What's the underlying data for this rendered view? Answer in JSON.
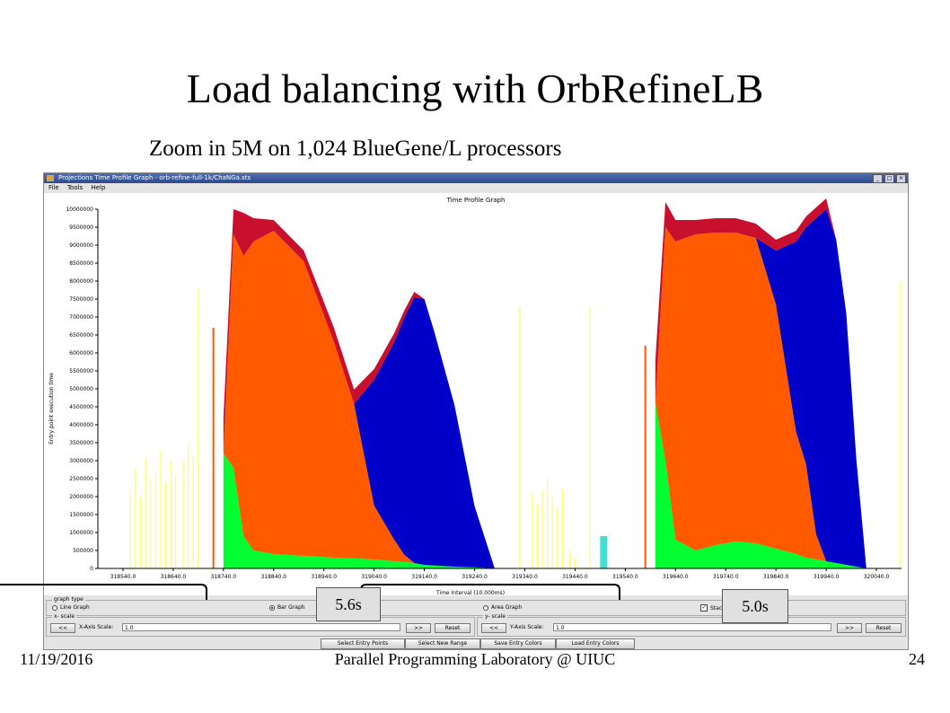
{
  "slide": {
    "title": "Load balancing with OrbRefineLB",
    "subtitle": "Zoom in 5M on 1,024 BlueGene/L processors",
    "footer_date": "11/19/2016",
    "footer_center": "Parallel Programming Laboratory @ UIUC",
    "footer_page": "24"
  },
  "window": {
    "title": "Projections Time Profile Graph - orb-refine-full-1k/ChaNGa.sts",
    "menu": [
      "File",
      "Tools",
      "Help"
    ],
    "buttons": [
      "_",
      "□",
      "×"
    ]
  },
  "chart_data": {
    "type": "area",
    "title": "Time Profile Graph",
    "xlabel": "Time Interval (10.000ms)",
    "ylabel": "Entry point execution time",
    "ylim": [
      0,
      10000000
    ],
    "y_ticks": [
      "0",
      "500000",
      "1000000",
      "1500000",
      "2000000",
      "2500000",
      "3000000",
      "3500000",
      "4000000",
      "4500000",
      "5000000",
      "5500000",
      "6000000",
      "6500000",
      "7000000",
      "7500000",
      "8000000",
      "8500000",
      "9000000",
      "9500000",
      "10000000"
    ],
    "x_ticks": [
      "318540.0",
      "318640.0",
      "318740.0",
      "318840.0",
      "318940.0",
      "319040.0",
      "319140.0",
      "319240.0",
      "319340.0",
      "319440.0",
      "319540.0",
      "319640.0",
      "319740.0",
      "319840.0",
      "319940.0",
      "320040.0"
    ],
    "colors": {
      "red": "#c8102e",
      "orange": "#ff5a00",
      "blue": "#0000c8",
      "green": "#00ff30",
      "yellow": "#ffff60",
      "cyan": "#40e0d0"
    },
    "blocks": [
      {
        "x": [
          318740,
          318760,
          318780,
          318800,
          318840,
          318900,
          318960,
          319000,
          319040,
          319080,
          319100,
          319120,
          319140,
          319160,
          319200,
          319240,
          319280
        ],
        "green": [
          3200000,
          2800000,
          900000,
          500000,
          400000,
          350000,
          300000,
          280000,
          250000,
          200000,
          180000,
          150000,
          100000,
          80000,
          50000,
          30000,
          0
        ],
        "orange": [
          0,
          6500000,
          7800000,
          8600000,
          9000000,
          8200000,
          6000000,
          4300000,
          1500000,
          600000,
          200000,
          0,
          0,
          0,
          0,
          0,
          0
        ],
        "blue": [
          0,
          0,
          0,
          0,
          0,
          0,
          0,
          0,
          3500000,
          5500000,
          6600000,
          7400000,
          7400000,
          6500000,
          4500000,
          1700000,
          0
        ],
        "red": [
          1000000,
          700000,
          1200000,
          650000,
          300000,
          300000,
          400000,
          400000,
          300000,
          250000,
          200000,
          150000,
          0,
          0,
          0,
          0,
          0
        ]
      },
      {
        "x": [
          319600,
          319620,
          319640,
          319680,
          319720,
          319760,
          319800,
          319840,
          319880,
          319900,
          319920,
          319940,
          319960,
          319980,
          320000,
          320020
        ],
        "green": [
          4600000,
          3000000,
          800000,
          500000,
          650000,
          750000,
          700000,
          550000,
          400000,
          300000,
          250000,
          200000,
          150000,
          100000,
          50000,
          0
        ],
        "orange": [
          0,
          6500000,
          8300000,
          8800000,
          8700000,
          8600000,
          8500000,
          6800000,
          3400000,
          2600000,
          700000,
          0,
          0,
          0,
          0,
          0
        ],
        "blue": [
          0,
          0,
          0,
          0,
          0,
          0,
          0,
          1500000,
          5300000,
          6600000,
          8800000,
          9800000,
          9000000,
          7000000,
          3000000,
          0
        ],
        "red": [
          1200000,
          700000,
          600000,
          400000,
          400000,
          400000,
          400000,
          300000,
          300000,
          300000,
          300000,
          300000,
          0,
          0,
          0,
          0
        ]
      }
    ]
  },
  "controls": {
    "graph_type_label": "graph type",
    "line_graph": "Line Graph",
    "bar_graph": "Bar Graph",
    "area_graph": "Area Graph",
    "stacked": "Stacked",
    "x_scale_label": "x- scale",
    "y_scale_label": "y- scale",
    "x_axis_scale_label": "X-Axis Scale:",
    "y_axis_scale_label": "Y-Axis Scale:",
    "x_scale_value": "1.0",
    "y_scale_value": "1.0",
    "prev": "<<",
    "next": ">>",
    "reset": "Reset",
    "select_entry_points": "Select Entry Points",
    "select_new_range": "Select New Range",
    "save_entry_colors": "Save Entry Colors",
    "load_entry_colors": "Load Entry Colors"
  },
  "annotations": {
    "first": "5.6s",
    "second": "5.0s"
  }
}
